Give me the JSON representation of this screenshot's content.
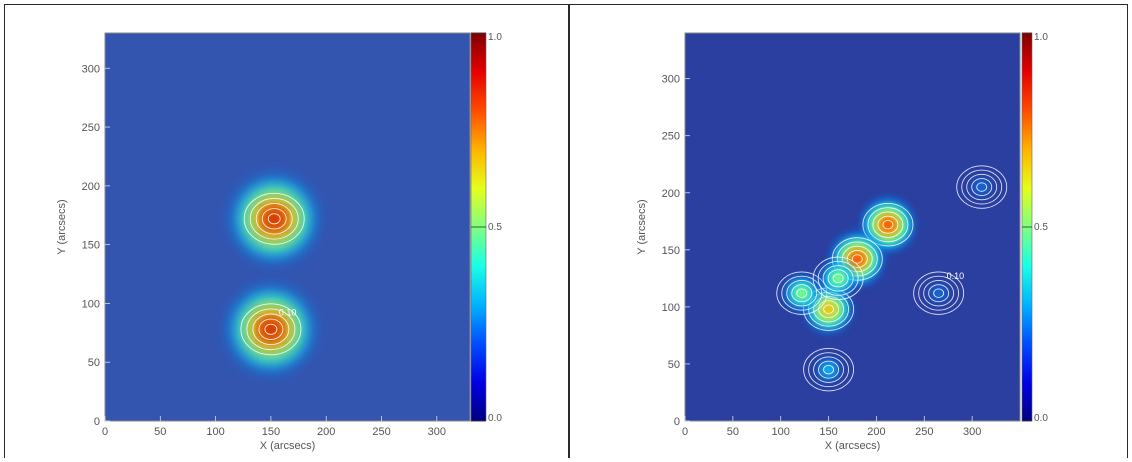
{
  "chart_data": [
    {
      "type": "heatmap",
      "panel": "left",
      "xlabel": "X (arcsecs)",
      "ylabel": "Y (arcsecs)",
      "xlim": [
        0,
        330
      ],
      "ylim": [
        0,
        330
      ],
      "xticks": [
        "0",
        "50",
        "100",
        "150",
        "200",
        "250",
        "300"
      ],
      "yticks": [
        "0",
        "50",
        "100",
        "150",
        "200",
        "250",
        "300"
      ],
      "colorbar": {
        "min": 0.0,
        "max": 1.0,
        "labels": [
          "0.0",
          "0.5",
          "1.0"
        ]
      },
      "contour_label": "0.10",
      "peaks": [
        {
          "x": 153,
          "y": 172,
          "value": 1.0
        },
        {
          "x": 150,
          "y": 78,
          "value": 1.0
        }
      ]
    },
    {
      "type": "heatmap",
      "panel": "right",
      "xlabel": "X (arcsecs)",
      "ylabel": "Y (arcsecs)",
      "xlim": [
        0,
        350
      ],
      "ylim": [
        0,
        340
      ],
      "xticks": [
        "0",
        "50",
        "100",
        "150",
        "200",
        "250",
        "300"
      ],
      "yticks": [
        "0",
        "50",
        "100",
        "150",
        "200",
        "250",
        "300"
      ],
      "colorbar": {
        "min": 0.0,
        "max": 1.0,
        "labels": [
          "0.0",
          "0.5",
          "1.0"
        ]
      },
      "contour_label": "0.10",
      "peaks": [
        {
          "x": 212,
          "y": 172,
          "value": 0.9
        },
        {
          "x": 180,
          "y": 142,
          "value": 0.9
        },
        {
          "x": 150,
          "y": 98,
          "value": 0.8
        },
        {
          "x": 122,
          "y": 112,
          "value": 0.6
        },
        {
          "x": 160,
          "y": 125,
          "value": 0.6
        },
        {
          "x": 150,
          "y": 45,
          "value": 0.4
        },
        {
          "x": 310,
          "y": 205,
          "value": 0.3
        },
        {
          "x": 265,
          "y": 112,
          "value": 0.3
        }
      ]
    }
  ]
}
